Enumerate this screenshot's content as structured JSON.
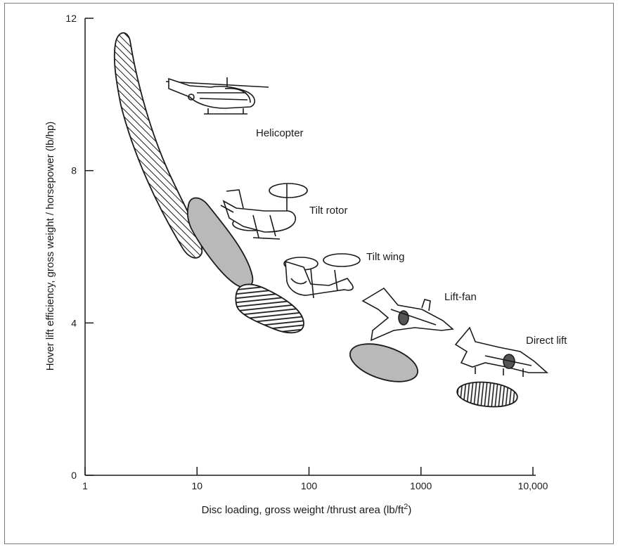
{
  "chart_data": {
    "type": "scatter",
    "title": "",
    "xlabel": "Disc loading, gross weight /thrust area (lb/ft",
    "xlabel_superscript": "2",
    "xlabel_suffix": ")",
    "ylabel": "Hover lift efficiency, gross weight / horsepower (lb/hp)",
    "x_scale": "log",
    "xlim": [
      1,
      10000
    ],
    "ylim": [
      0,
      12
    ],
    "x_ticks": [
      {
        "value": 1,
        "label": "1"
      },
      {
        "value": 10,
        "label": "10"
      },
      {
        "value": 100,
        "label": "100"
      },
      {
        "value": 1000,
        "label": "1000"
      },
      {
        "value": 10000,
        "label": "10,000"
      }
    ],
    "y_ticks": [
      {
        "value": 0,
        "label": "0"
      },
      {
        "value": 4,
        "label": "4"
      },
      {
        "value": 8,
        "label": "8"
      },
      {
        "value": 12,
        "label": "12"
      }
    ],
    "grid": false,
    "legend": "none",
    "regions": [
      {
        "name": "Helicopter",
        "fill": "hatch-diagonal",
        "x_range": [
          1.5,
          12
        ],
        "y_range": [
          5.8,
          11.6
        ]
      },
      {
        "name": "Tilt rotor",
        "fill": "gray",
        "x_range": [
          8,
          40
        ],
        "y_range": [
          5.1,
          7.3
        ]
      },
      {
        "name": "Tilt wing",
        "fill": "hatch-horizontal",
        "x_range": [
          25,
          90
        ],
        "y_range": [
          3.8,
          5.0
        ]
      },
      {
        "name": "Lift-fan",
        "fill": "gray",
        "x_range": [
          250,
          900
        ],
        "y_range": [
          2.5,
          3.5
        ]
      },
      {
        "name": "Direct lift",
        "fill": "hatch-vertical",
        "x_range": [
          2000,
          7000
        ],
        "y_range": [
          1.8,
          2.5
        ]
      }
    ],
    "colors": {
      "gray_fill": "#b9b9b9",
      "ink": "#1a1a1a",
      "frame": "#7a7a7a"
    }
  }
}
